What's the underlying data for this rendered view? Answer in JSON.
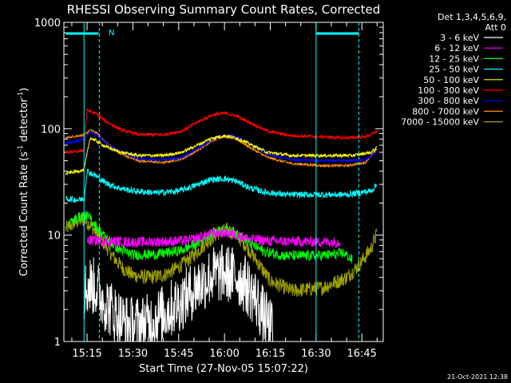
{
  "chart_data": {
    "type": "line",
    "title": "RHESSI Observing Summary Count Rates, Corrected",
    "xlabel": "Start Time (27-Nov-05 15:07:22)",
    "ylabel": "Corrected Count Rate (s",
    "ylabel_sup1": "-1",
    "ylabel_mid": " detector",
    "ylabel_sup2": "-1",
    "ylabel_end": ")",
    "yscale": "log",
    "ylim": [
      1,
      1000
    ],
    "yticks": [
      {
        "v": 1,
        "label": "1"
      },
      {
        "v": 10,
        "label": "10"
      },
      {
        "v": 100,
        "label": "100"
      },
      {
        "v": 1000,
        "label": "1000"
      }
    ],
    "xlim_min": [
      7.4,
      112
    ],
    "xticks": [
      {
        "m": 15,
        "label": "15:15"
      },
      {
        "m": 30,
        "label": "15:30"
      },
      {
        "m": 45,
        "label": "15:45"
      },
      {
        "m": 60,
        "label": "16:00"
      },
      {
        "m": 75,
        "label": "16:15"
      },
      {
        "m": 90,
        "label": "16:30"
      },
      {
        "m": 105,
        "label": "16:45"
      }
    ],
    "legend_header": [
      "Det 1,3,4,5,6,9,",
      "Att 0"
    ],
    "legend_placement": "top-right",
    "annotation": "N",
    "timestamp": "21-Oct-2021 12:38",
    "night_markers_min": [
      14,
      19,
      90,
      104
    ],
    "series": [
      {
        "name": "3 - 6 keV",
        "color": "#ffffff",
        "points": [
          [
            14,
            3.0
          ],
          [
            16,
            3.4
          ],
          [
            18,
            3.2
          ],
          [
            20,
            2.5
          ],
          [
            23,
            2.0
          ],
          [
            26,
            1.6
          ],
          [
            29,
            1.4
          ],
          [
            35,
            1.5
          ],
          [
            41,
            1.9
          ],
          [
            46,
            2.4
          ],
          [
            51,
            3.3
          ],
          [
            56,
            4.2
          ],
          [
            60,
            4.4
          ],
          [
            64,
            4.1
          ],
          [
            67,
            3.4
          ],
          [
            70,
            2.6
          ],
          [
            73,
            1.7
          ],
          [
            76,
            1.2
          ]
        ],
        "noise": 0.28
      },
      {
        "name": "6 - 12 keV",
        "color": "#ff00ff",
        "points": [
          [
            15,
            9.0
          ],
          [
            20,
            8.8
          ],
          [
            30,
            8.6
          ],
          [
            40,
            8.7
          ],
          [
            48,
            8.9
          ],
          [
            52,
            9.6
          ],
          [
            56,
            10.4
          ],
          [
            60,
            10.6
          ],
          [
            64,
            10.0
          ],
          [
            68,
            9.2
          ],
          [
            75,
            8.8
          ],
          [
            85,
            8.7
          ],
          [
            98,
            8.6
          ]
        ],
        "noise": 0.05
      },
      {
        "name": "12 - 25 keV",
        "color": "#00ff00",
        "points": [
          [
            9,
            13.0
          ],
          [
            12,
            14.5
          ],
          [
            14,
            15.5
          ],
          [
            16,
            14.5
          ],
          [
            18,
            12.0
          ],
          [
            21,
            9.5
          ],
          [
            25,
            7.5
          ],
          [
            30,
            6.5
          ],
          [
            38,
            6.6
          ],
          [
            46,
            7.2
          ],
          [
            52,
            8.7
          ],
          [
            57,
            10.8
          ],
          [
            60,
            11.3
          ],
          [
            64,
            10.3
          ],
          [
            68,
            8.5
          ],
          [
            73,
            7.0
          ],
          [
            80,
            6.4
          ],
          [
            90,
            6.4
          ],
          [
            97,
            6.6
          ],
          [
            99,
            6.8
          ],
          [
            102,
            5.8
          ]
        ],
        "noise": 0.05
      },
      {
        "name": "25 - 50 keV",
        "color": "#00ffff",
        "points": [
          [
            8,
            22
          ],
          [
            12,
            21.5
          ],
          [
            14,
            22
          ],
          [
            15,
            40
          ],
          [
            18,
            36
          ],
          [
            21,
            31
          ],
          [
            25,
            28
          ],
          [
            30,
            26
          ],
          [
            38,
            25
          ],
          [
            45,
            26
          ],
          [
            50,
            29
          ],
          [
            55,
            33
          ],
          [
            60,
            34
          ],
          [
            64,
            32
          ],
          [
            68,
            28
          ],
          [
            73,
            25.5
          ],
          [
            80,
            24
          ],
          [
            90,
            24
          ],
          [
            100,
            24
          ],
          [
            108,
            26
          ],
          [
            110,
            30
          ]
        ],
        "noise": 0.03
      },
      {
        "name": "50 - 100 keV",
        "color": "#ffff00",
        "points": [
          [
            8,
            38
          ],
          [
            12,
            40
          ],
          [
            14,
            41
          ],
          [
            16,
            82
          ],
          [
            18,
            77
          ],
          [
            21,
            68
          ],
          [
            26,
            60
          ],
          [
            32,
            56
          ],
          [
            40,
            56
          ],
          [
            46,
            60
          ],
          [
            51,
            70
          ],
          [
            56,
            82
          ],
          [
            60,
            86
          ],
          [
            64,
            82
          ],
          [
            69,
            70
          ],
          [
            74,
            60
          ],
          [
            82,
            56
          ],
          [
            92,
            56
          ],
          [
            102,
            56
          ],
          [
            108,
            60
          ],
          [
            110,
            67
          ]
        ],
        "noise": 0.015
      },
      {
        "name": "100 - 300 keV",
        "color": "#ff0000",
        "points": [
          [
            8,
            60
          ],
          [
            12,
            61
          ],
          [
            14,
            63
          ],
          [
            15,
            150
          ],
          [
            18,
            138
          ],
          [
            21,
            118
          ],
          [
            26,
            98
          ],
          [
            32,
            88
          ],
          [
            40,
            88
          ],
          [
            46,
            95
          ],
          [
            51,
            115
          ],
          [
            56,
            135
          ],
          [
            60,
            140
          ],
          [
            64,
            132
          ],
          [
            69,
            112
          ],
          [
            74,
            95
          ],
          [
            82,
            86
          ],
          [
            92,
            84
          ],
          [
            100,
            82
          ],
          [
            106,
            84
          ],
          [
            108,
            88
          ],
          [
            110,
            95
          ]
        ],
        "noise": 0.015
      },
      {
        "name": "300 - 800 keV",
        "color": "#0000ff",
        "points": [
          [
            8,
            73
          ],
          [
            12,
            77
          ],
          [
            14,
            80
          ],
          [
            16,
            94
          ],
          [
            18,
            88
          ],
          [
            21,
            74
          ],
          [
            26,
            60
          ],
          [
            32,
            52
          ],
          [
            40,
            51
          ],
          [
            46,
            54
          ],
          [
            51,
            64
          ],
          [
            56,
            80
          ],
          [
            60,
            87
          ],
          [
            64,
            84
          ],
          [
            69,
            70
          ],
          [
            74,
            58
          ],
          [
            82,
            51
          ],
          [
            92,
            50
          ],
          [
            100,
            50
          ],
          [
            106,
            51
          ],
          [
            108,
            55
          ],
          [
            110,
            62
          ]
        ],
        "noise": 0.012
      },
      {
        "name": "800 - 7000 keV",
        "color": "#ff8c00",
        "points": [
          [
            8,
            82
          ],
          [
            12,
            86
          ],
          [
            14,
            87
          ],
          [
            16,
            97
          ],
          [
            18,
            92
          ],
          [
            21,
            75
          ],
          [
            26,
            58
          ],
          [
            32,
            50
          ],
          [
            40,
            48
          ],
          [
            46,
            52
          ],
          [
            51,
            62
          ],
          [
            56,
            78
          ],
          [
            60,
            85
          ],
          [
            64,
            80
          ],
          [
            69,
            65
          ],
          [
            74,
            54
          ],
          [
            82,
            47
          ],
          [
            92,
            45
          ],
          [
            100,
            45
          ],
          [
            106,
            48
          ],
          [
            108,
            55
          ],
          [
            110,
            65
          ]
        ],
        "noise": 0.012
      },
      {
        "name": "7000 - 15000 keV",
        "color": "#a0a000",
        "points": [
          [
            8,
            11.5
          ],
          [
            10,
            12.5
          ],
          [
            12,
            13.5
          ],
          [
            14,
            14.0
          ],
          [
            16,
            12.5
          ],
          [
            18,
            10.5
          ],
          [
            21,
            8.0
          ],
          [
            24,
            6.0
          ],
          [
            27,
            4.8
          ],
          [
            30,
            4.2
          ],
          [
            35,
            4.0
          ],
          [
            40,
            4.2
          ],
          [
            45,
            5.0
          ],
          [
            50,
            6.5
          ],
          [
            54,
            8.5
          ],
          [
            58,
            10.5
          ],
          [
            61,
            11.2
          ],
          [
            64,
            10.0
          ],
          [
            67,
            8.0
          ],
          [
            71,
            5.5
          ],
          [
            75,
            3.7
          ],
          [
            82,
            3.0
          ],
          [
            92,
            3.2
          ],
          [
            100,
            4.0
          ],
          [
            104,
            5.2
          ],
          [
            108,
            7.5
          ],
          [
            110,
            10.5
          ]
        ],
        "noise": 0.07
      }
    ]
  }
}
